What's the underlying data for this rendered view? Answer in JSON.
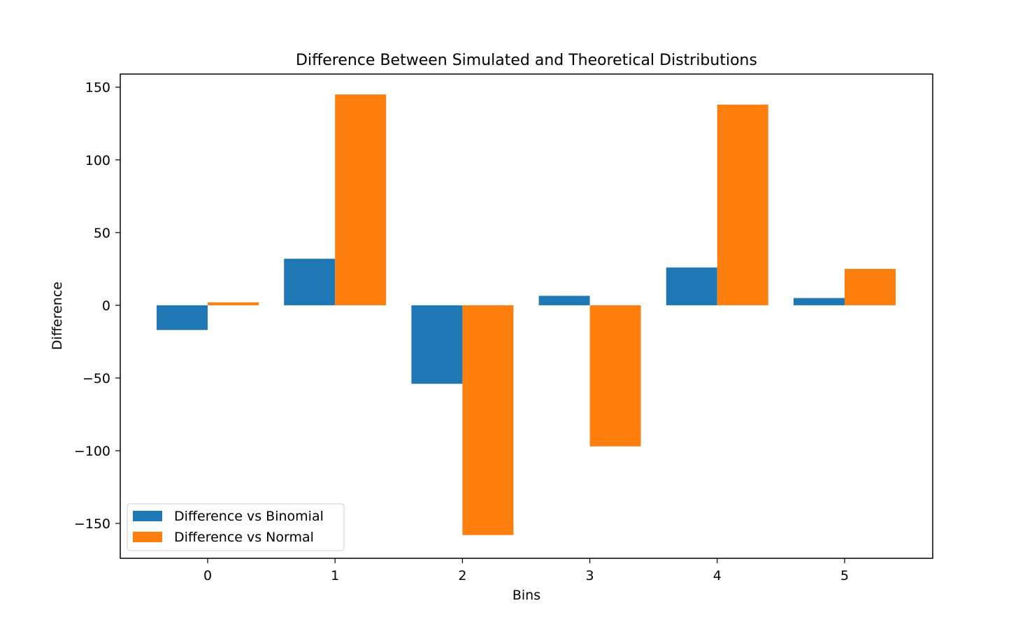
{
  "chart_data": {
    "type": "bar",
    "title": "Difference Between Simulated and Theoretical Distributions",
    "xlabel": "Bins",
    "ylabel": "Difference",
    "categories": [
      "0",
      "1",
      "2",
      "3",
      "4",
      "5"
    ],
    "yticks": [
      -150,
      -100,
      -50,
      0,
      50,
      100,
      150
    ],
    "ytick_labels": [
      "−150",
      "−100",
      "−50",
      "0",
      "50",
      "100",
      "150"
    ],
    "ylim": [
      -174,
      159
    ],
    "grid": false,
    "legend_position": "lower-left",
    "series": [
      {
        "name": "Difference vs Binomial",
        "color": "#1f77b4",
        "values": [
          -17,
          32,
          -54,
          6.5,
          26,
          5
        ]
      },
      {
        "name": "Difference vs Normal",
        "color": "#ff7f0e",
        "values": [
          2,
          145,
          -158,
          -97,
          138,
          25
        ]
      }
    ]
  }
}
